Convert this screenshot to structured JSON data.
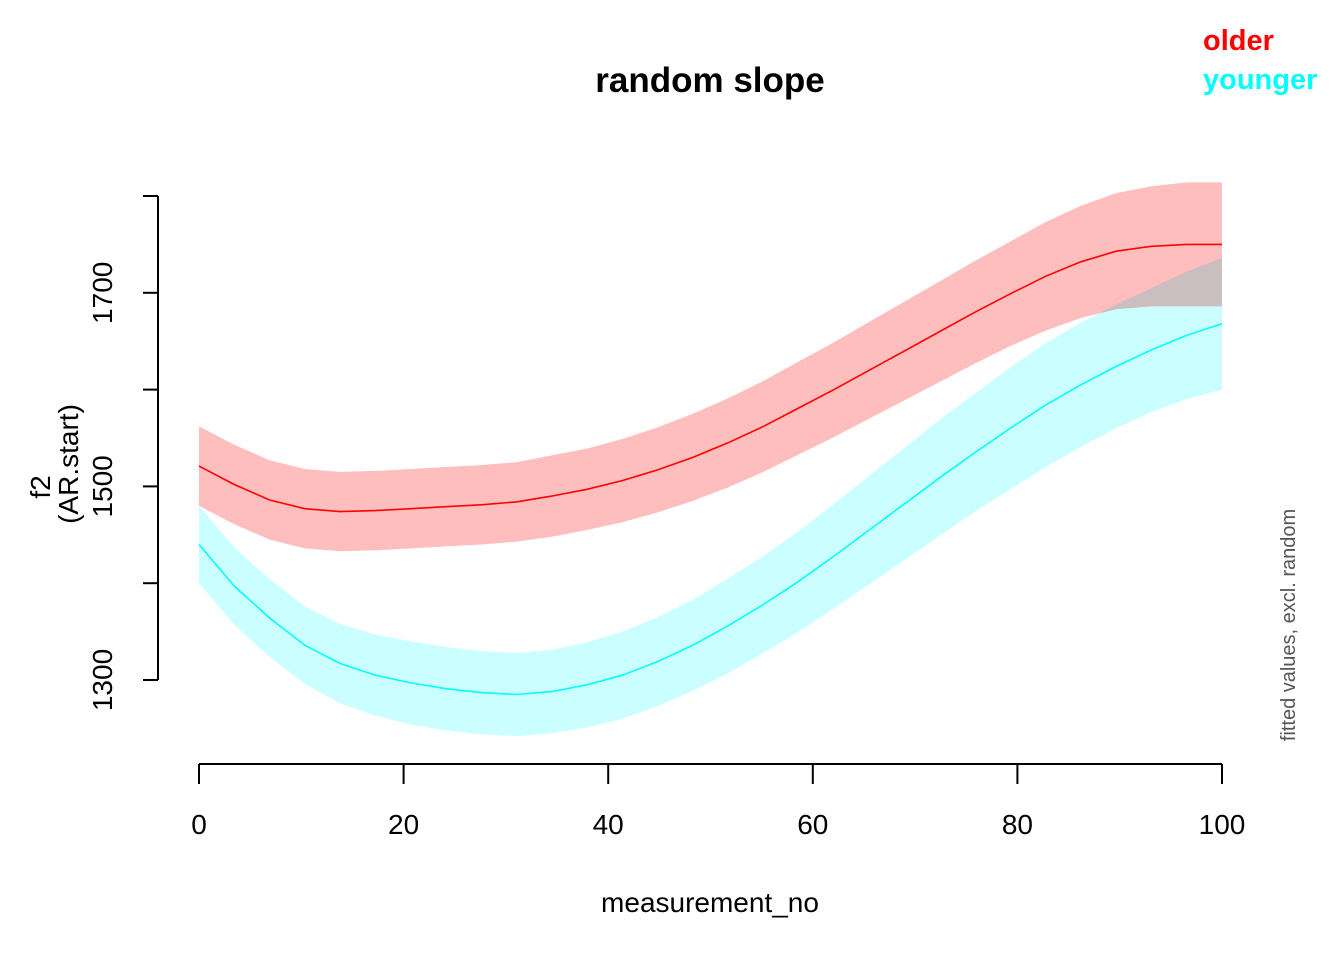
{
  "chart_data": {
    "type": "line",
    "title": "random slope",
    "xlabel": "measurement_no",
    "ylabel": "f2",
    "ylabel2": "(AR.start)",
    "note": "fitted values, excl. random",
    "xlim": [
      0,
      100
    ],
    "ylim": [
      1215,
      1812
    ],
    "x_ticks": [
      0,
      20,
      40,
      60,
      80,
      100
    ],
    "y_ticks": [
      1300,
      1400,
      1500,
      1600,
      1700,
      1800
    ],
    "y_tick_labels": [
      "1300",
      "",
      "1500",
      "",
      "1700",
      ""
    ],
    "legend_position": "top-right",
    "series": [
      {
        "name": "older",
        "color": "#ff0000",
        "band_color": "#ffbebe",
        "x": [
          0,
          3.45,
          6.9,
          10.34,
          13.79,
          17.24,
          20.69,
          24.14,
          27.59,
          31.03,
          34.48,
          37.93,
          41.38,
          44.83,
          48.28,
          51.72,
          55.17,
          58.62,
          62.07,
          65.52,
          68.97,
          72.41,
          75.86,
          79.31,
          82.76,
          86.21,
          89.66,
          93.1,
          96.55,
          100
        ],
        "values": [
          1521,
          1502,
          1486,
          1477,
          1474,
          1475,
          1477,
          1479,
          1481,
          1484,
          1490,
          1497,
          1506,
          1517,
          1530,
          1545,
          1562,
          1581,
          1600,
          1620,
          1640,
          1660,
          1680,
          1699,
          1717,
          1732,
          1743,
          1748,
          1750,
          1750
        ],
        "lower": [
          1480,
          1461,
          1445,
          1436,
          1433,
          1434,
          1436,
          1438,
          1440,
          1443,
          1448,
          1455,
          1463,
          1473,
          1485,
          1499,
          1515,
          1533,
          1551,
          1570,
          1589,
          1608,
          1627,
          1645,
          1661,
          1674,
          1683,
          1686,
          1686,
          1686
        ],
        "upper": [
          1562,
          1543,
          1527,
          1518,
          1515,
          1516,
          1518,
          1520,
          1522,
          1525,
          1532,
          1539,
          1549,
          1561,
          1575,
          1591,
          1609,
          1629,
          1649,
          1670,
          1691,
          1712,
          1733,
          1753,
          1773,
          1790,
          1803,
          1810,
          1814,
          1814
        ]
      },
      {
        "name": "younger",
        "color": "#00ffff",
        "band_color": "#c2ffff",
        "x": [
          0,
          3.45,
          6.9,
          10.34,
          13.79,
          17.24,
          20.69,
          24.14,
          27.59,
          31.03,
          34.48,
          37.93,
          41.38,
          44.83,
          48.28,
          51.72,
          55.17,
          58.62,
          62.07,
          65.52,
          68.97,
          72.41,
          75.86,
          79.31,
          82.76,
          86.21,
          89.66,
          93.1,
          96.55,
          100
        ],
        "values": [
          1440,
          1397,
          1364,
          1336,
          1317,
          1305,
          1297,
          1291,
          1287,
          1285,
          1288,
          1295,
          1305,
          1319,
          1336,
          1356,
          1378,
          1402,
          1428,
          1455,
          1482,
          1509,
          1535,
          1560,
          1584,
          1605,
          1624,
          1641,
          1656,
          1668
        ],
        "lower": [
          1400,
          1357,
          1324,
          1296,
          1276,
          1263,
          1254,
          1248,
          1244,
          1242,
          1245,
          1251,
          1260,
          1273,
          1289,
          1307,
          1328,
          1350,
          1374,
          1399,
          1424,
          1449,
          1474,
          1497,
          1520,
          1541,
          1560,
          1577,
          1590,
          1600
        ],
        "upper": [
          1480,
          1437,
          1404,
          1376,
          1358,
          1347,
          1340,
          1334,
          1330,
          1328,
          1331,
          1339,
          1350,
          1365,
          1383,
          1405,
          1428,
          1454,
          1482,
          1511,
          1540,
          1569,
          1596,
          1623,
          1648,
          1669,
          1688,
          1705,
          1722,
          1736
        ]
      }
    ]
  }
}
